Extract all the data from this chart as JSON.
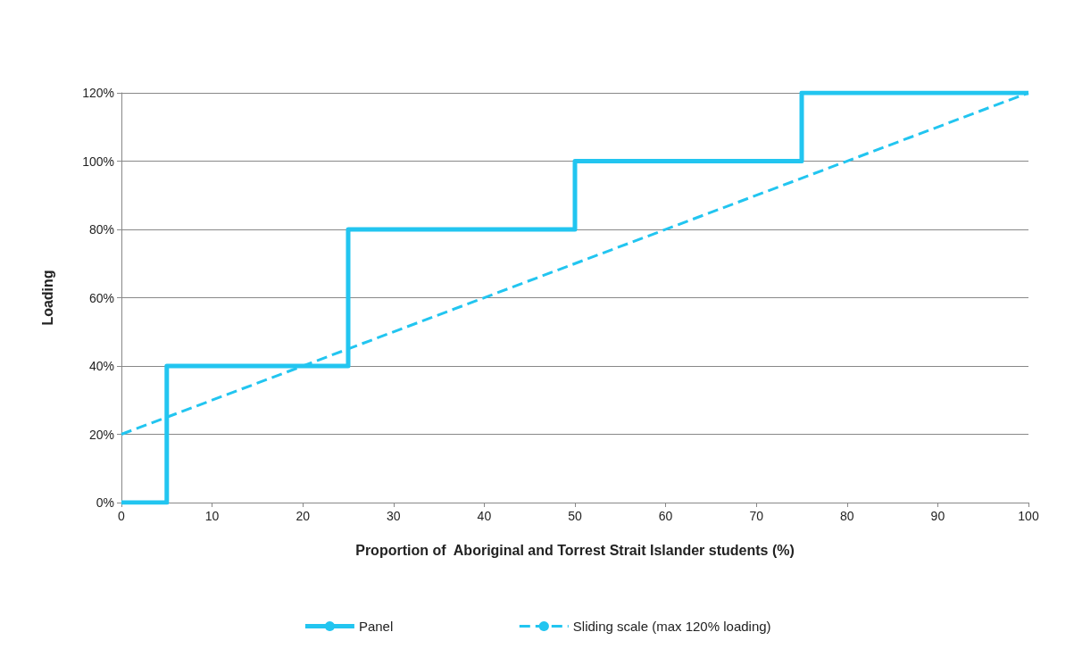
{
  "chart_data": {
    "type": "step",
    "xlabel": "Proportion of  Aboriginal and Torrest Strait Islander students (%)",
    "ylabel": "Loading",
    "xlim": [
      0,
      100
    ],
    "xticks": [
      0,
      10,
      20,
      30,
      40,
      50,
      60,
      70,
      80,
      90,
      100
    ],
    "ylim": [
      0,
      120
    ],
    "yticks": [
      {
        "value": 0,
        "label": "0%"
      },
      {
        "value": 20,
        "label": "20%"
      },
      {
        "value": 40,
        "label": "40%"
      },
      {
        "value": 60,
        "label": "60%"
      },
      {
        "value": 80,
        "label": "80%"
      },
      {
        "value": 100,
        "label": "100%"
      },
      {
        "value": 120,
        "label": "120%"
      }
    ],
    "grid": "y",
    "legend": "bottom",
    "marker": "none",
    "series": [
      {
        "name": "Panel",
        "color": "#22c5f0",
        "line_style": "solid",
        "x": [
          0,
          5,
          25,
          50,
          75,
          100
        ],
        "values": [
          0,
          40,
          80,
          100,
          120,
          120
        ]
      },
      {
        "name": "Sliding scale (max 120% loading)",
        "type": "line",
        "color": "#22c5f0",
        "line_style": "dashed",
        "x": [
          0,
          100
        ],
        "values": [
          20,
          120
        ]
      }
    ]
  }
}
